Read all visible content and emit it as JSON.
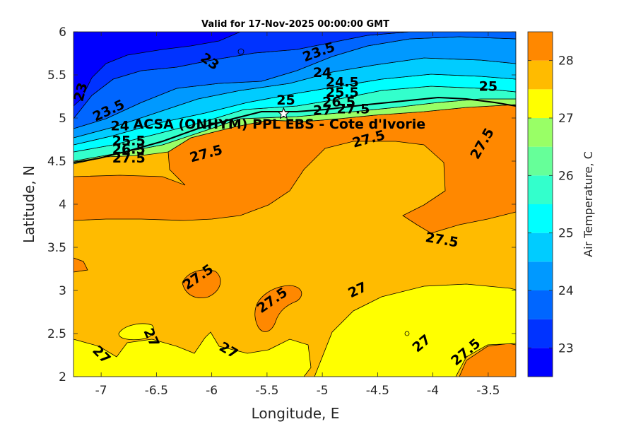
{
  "chart_data": {
    "type": "heatmap",
    "title": "Valid for 17-Nov-2025 00:00:00 GMT",
    "xlabel": "Longitude, E",
    "ylabel": "Latitude, N",
    "xlim": [
      -7.25,
      -3.25
    ],
    "ylim": [
      2,
      6
    ],
    "xticks": [
      -7,
      -6.5,
      -6,
      -5.5,
      -5,
      -4.5,
      -4,
      -3.5
    ],
    "xtick_labels": [
      "-7",
      "-6.5",
      "-6",
      "-5.5",
      "-5",
      "-4.5",
      "-4",
      "-3.5"
    ],
    "yticks": [
      2,
      2.5,
      3,
      3.5,
      4,
      4.5,
      5,
      5.5,
      6
    ],
    "ytick_labels": [
      "2",
      "2.5",
      "3",
      "3.5",
      "4",
      "4.5",
      "5",
      "5.5",
      "6"
    ],
    "colorbar": {
      "label": "Air Temperature, C",
      "range": [
        22.5,
        28.5
      ],
      "levels": [
        22.5,
        23,
        23.5,
        24,
        24.5,
        25,
        25.5,
        26,
        26.5,
        27,
        27.5,
        28,
        28.5
      ],
      "colors": [
        "#0000ff",
        "#0033ff",
        "#0066ff",
        "#0099ff",
        "#00ccff",
        "#00ffff",
        "#33ffcc",
        "#66ff99",
        "#99ff66",
        "#ffff00",
        "#ffbb00",
        "#ff8800",
        "#ff5500",
        "#ff0000"
      ],
      "ticks": [
        23,
        24,
        25,
        26,
        27,
        28
      ],
      "tick_labels": [
        "23",
        "24",
        "25",
        "26",
        "27",
        "28"
      ]
    },
    "station": {
      "name": "ACSA (ONHYM) PPL EBS - Cote d'Ivorie",
      "lon": -5.35,
      "lat": 5.05
    },
    "contour_labels": [
      {
        "text": "23.5",
        "lon": -5.03,
        "lat": 5.76,
        "rot": -20
      },
      {
        "text": "23",
        "lon": -6.02,
        "lat": 5.65,
        "rot": 35
      },
      {
        "text": "23",
        "lon": -7.18,
        "lat": 5.3,
        "rot": -75
      },
      {
        "text": "24",
        "lon": -5.0,
        "lat": 5.52,
        "rot": 0
      },
      {
        "text": "24.5",
        "lon": -4.82,
        "lat": 5.41,
        "rot": 0
      },
      {
        "text": "25",
        "lon": -5.33,
        "lat": 5.2,
        "rot": 0
      },
      {
        "text": "25",
        "lon": -3.5,
        "lat": 5.36,
        "rot": 0
      },
      {
        "text": "25.5",
        "lon": -4.82,
        "lat": 5.29,
        "rot": 0
      },
      {
        "text": "26.5",
        "lon": -4.85,
        "lat": 5.18,
        "rot": 0
      },
      {
        "text": "27",
        "lon": -5.0,
        "lat": 5.08,
        "rot": 0
      },
      {
        "text": "27.5",
        "lon": -4.72,
        "lat": 5.1,
        "rot": 0
      },
      {
        "text": "23.5",
        "lon": -6.93,
        "lat": 5.08,
        "rot": -25
      },
      {
        "text": "24",
        "lon": -6.83,
        "lat": 4.9,
        "rot": 0
      },
      {
        "text": "25.5",
        "lon": -6.75,
        "lat": 4.73,
        "rot": 0
      },
      {
        "text": "26.5",
        "lon": -6.75,
        "lat": 4.63,
        "rot": 0
      },
      {
        "text": "27.5",
        "lon": -6.75,
        "lat": 4.53,
        "rot": 0
      },
      {
        "text": "27.5",
        "lon": -6.05,
        "lat": 4.58,
        "rot": -15
      },
      {
        "text": "27.5",
        "lon": -4.58,
        "lat": 4.75,
        "rot": -15
      },
      {
        "text": "27.5",
        "lon": -3.55,
        "lat": 4.7,
        "rot": -60
      },
      {
        "text": "27.5",
        "lon": -3.92,
        "lat": 3.58,
        "rot": 10
      },
      {
        "text": "27.5",
        "lon": -6.12,
        "lat": 3.15,
        "rot": -35
      },
      {
        "text": "27.5",
        "lon": -5.45,
        "lat": 2.88,
        "rot": -35
      },
      {
        "text": "27",
        "lon": -4.68,
        "lat": 3.0,
        "rot": -25
      },
      {
        "text": "27",
        "lon": -6.55,
        "lat": 2.45,
        "rot": 65
      },
      {
        "text": "27",
        "lon": -7.0,
        "lat": 2.25,
        "rot": 45
      },
      {
        "text": "27",
        "lon": -5.85,
        "lat": 2.3,
        "rot": 30
      },
      {
        "text": "27",
        "lon": -4.1,
        "lat": 2.38,
        "rot": -40
      },
      {
        "text": "27.5",
        "lon": -3.7,
        "lat": 2.28,
        "rot": -40
      }
    ]
  }
}
